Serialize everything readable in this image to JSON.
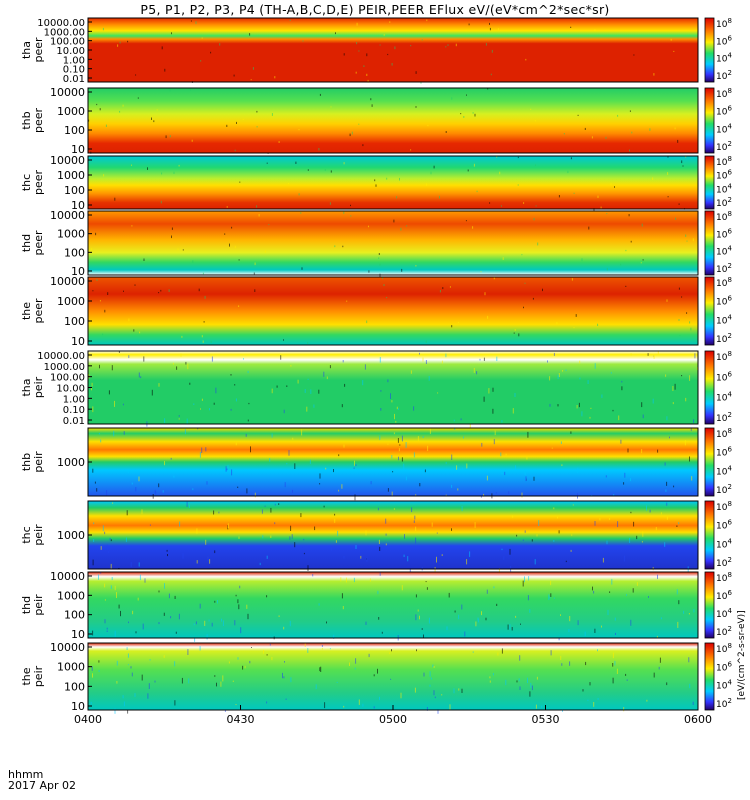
{
  "title": "P5, P1, P2, P3, P4 (TH-A,B,C,D,E) PEIR,PEER EFlux eV/(eV*cm^2*sec*sr)",
  "time_axis": {
    "prefix_label": "hhmm",
    "date_label": "2017 Apr 02",
    "ticks": [
      "0400",
      "0430",
      "0500",
      "0530",
      "0600"
    ]
  },
  "colorbar_unit_label": "[eV/(cm^2-s-sr-eV)]",
  "colors": {
    "background": "#ffffff",
    "axis": "#000000",
    "high": "#dd2200",
    "mid": "#ffee00",
    "low": "#22cc66",
    "min": "#3333ff"
  },
  "chart_data": [
    {
      "type": "heatmap",
      "panel": "tha peer",
      "ylabel": [
        "tha",
        "peer"
      ],
      "yticks": [
        "10000.00",
        "1000.00",
        "100.00",
        "10.00",
        "1.00",
        "0.10",
        "0.01"
      ],
      "colorbar_ticks": [
        "10^8",
        "10^6",
        "10^4",
        "10^2"
      ]
    },
    {
      "type": "heatmap",
      "panel": "thb peer",
      "ylabel": [
        "thb",
        "peer"
      ],
      "yticks": [
        "10000",
        "1000",
        "100",
        "10"
      ],
      "colorbar_ticks": [
        "10^8",
        "10^6",
        "10^4",
        "10^2"
      ]
    },
    {
      "type": "heatmap",
      "panel": "thc peer",
      "ylabel": [
        "thc",
        "peer"
      ],
      "yticks": [
        "10000",
        "1000",
        "100",
        "10"
      ],
      "colorbar_ticks": [
        "10^8",
        "10^6",
        "10^4",
        "10^2"
      ]
    },
    {
      "type": "heatmap",
      "panel": "thd peer",
      "ylabel": [
        "thd",
        "peer"
      ],
      "yticks": [
        "10000",
        "1000",
        "100",
        "10"
      ],
      "colorbar_ticks": [
        "10^8",
        "10^6",
        "10^4",
        "10^2"
      ]
    },
    {
      "type": "heatmap",
      "panel": "the peer",
      "ylabel": [
        "the",
        "peer"
      ],
      "yticks": [
        "10000",
        "1000",
        "100",
        "10"
      ],
      "colorbar_ticks": [
        "10^8",
        "10^6",
        "10^4",
        "10^2"
      ]
    },
    {
      "type": "heatmap",
      "panel": "tha peir",
      "ylabel": [
        "tha",
        "peir"
      ],
      "yticks": [
        "10000.00",
        "1000.00",
        "100.00",
        "10.00",
        "1.00",
        "0.10",
        "0.01"
      ],
      "colorbar_ticks": [
        "10^8",
        "10^6",
        "10^4",
        "10^2"
      ]
    },
    {
      "type": "heatmap",
      "panel": "thb peir",
      "ylabel": [
        "thb",
        "peir"
      ],
      "yticks": [
        "1000"
      ],
      "colorbar_ticks": [
        "10^8",
        "10^6",
        "10^4",
        "10^2"
      ]
    },
    {
      "type": "heatmap",
      "panel": "thc peir",
      "ylabel": [
        "thc",
        "peir"
      ],
      "yticks": [
        "1000"
      ],
      "colorbar_ticks": [
        "10^8",
        "10^6",
        "10^4",
        "10^2"
      ]
    },
    {
      "type": "heatmap",
      "panel": "thd peir",
      "ylabel": [
        "thd",
        "peir"
      ],
      "yticks": [
        "10000",
        "1000",
        "100",
        "10"
      ],
      "colorbar_ticks": [
        "10^8",
        "10^6",
        "10^4",
        "10^2"
      ]
    },
    {
      "type": "heatmap",
      "panel": "the peir",
      "ylabel": [
        "the",
        "peir"
      ],
      "yticks": [
        "10000",
        "1000",
        "100",
        "10"
      ],
      "colorbar_ticks": [
        "10^8",
        "10^6",
        "10^4",
        "10^2"
      ]
    }
  ]
}
